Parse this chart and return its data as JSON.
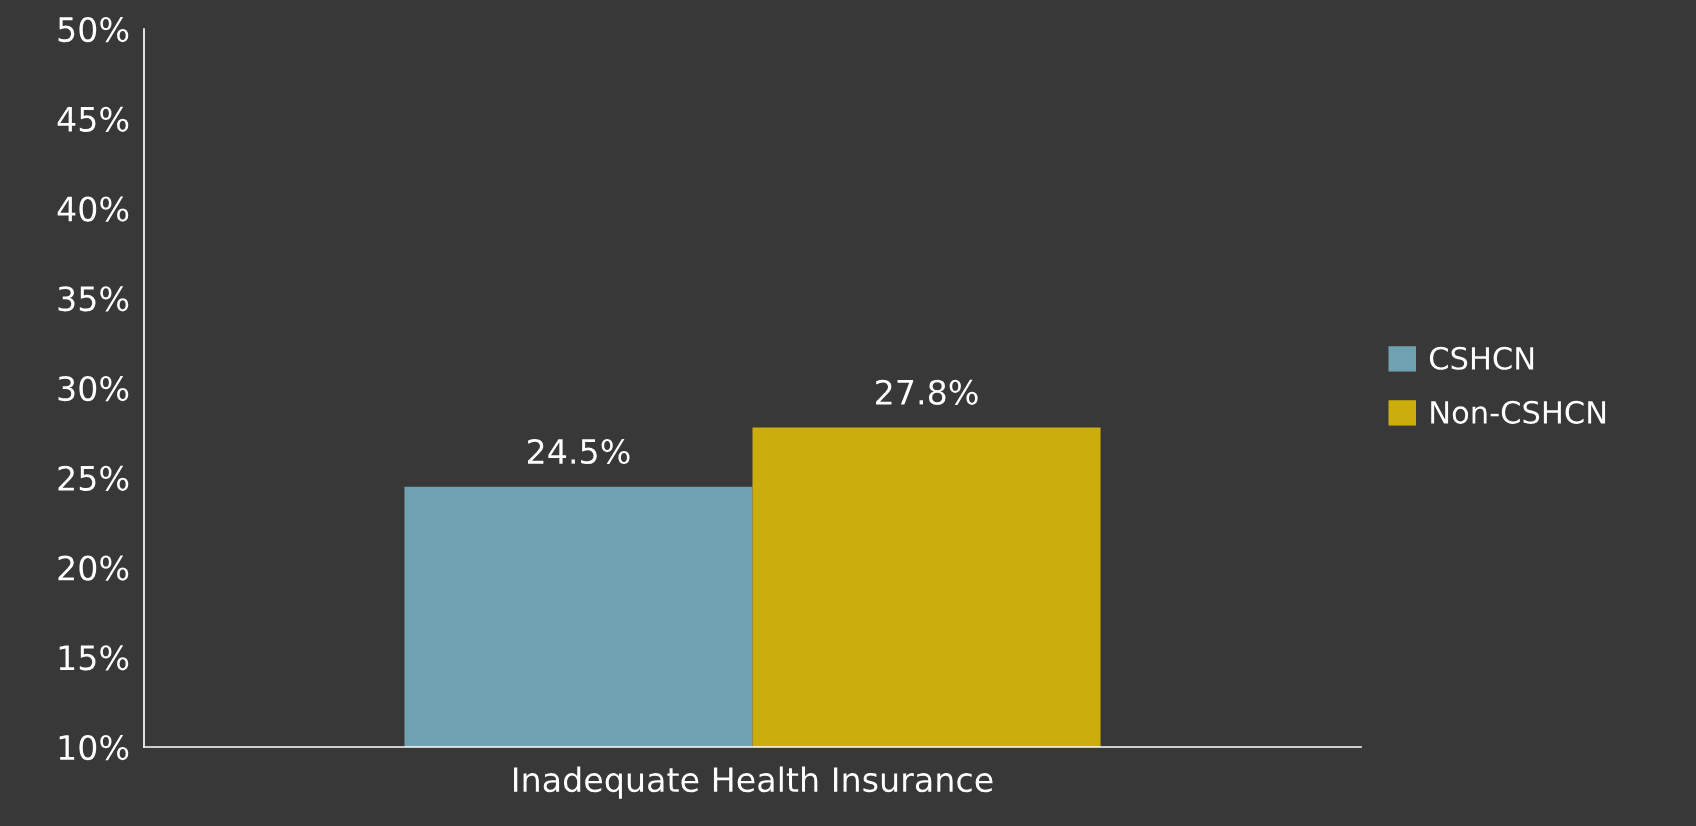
{
  "chart_data": {
    "type": "bar",
    "categories": [
      "Inadequate Health Insurance"
    ],
    "series": [
      {
        "name": "CSHCN",
        "color": "#6fa1b1",
        "values": [
          24.5
        ],
        "value_labels": [
          "24.5%"
        ]
      },
      {
        "name": "Non-CSHCN",
        "color": "#cbad0c",
        "values": [
          27.8
        ],
        "value_labels": [
          "27.8%"
        ]
      }
    ],
    "ylim": [
      10,
      50
    ],
    "yticks": [
      {
        "value": 10,
        "label": "10%"
      },
      {
        "value": 15,
        "label": "15%"
      },
      {
        "value": 20,
        "label": "20%"
      },
      {
        "value": 25,
        "label": "25%"
      },
      {
        "value": 30,
        "label": "30%"
      },
      {
        "value": 35,
        "label": "35%"
      },
      {
        "value": 40,
        "label": "40%"
      },
      {
        "value": 45,
        "label": "45%"
      },
      {
        "value": 50,
        "label": "50%"
      }
    ],
    "grid": false,
    "legend": "right"
  }
}
